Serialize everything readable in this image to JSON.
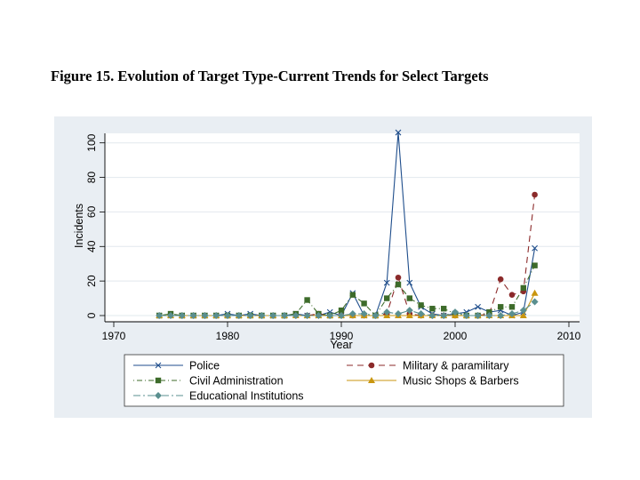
{
  "figure_title": "Figure 15. Evolution of Target Type-Current Trends for Select Targets",
  "chart_data": {
    "type": "line",
    "xlabel": "Year",
    "ylabel": "Incidents",
    "xlim": [
      1970,
      2010
    ],
    "ylim": [
      0,
      105
    ],
    "x_ticks": [
      1970,
      1980,
      1990,
      2000,
      2010
    ],
    "y_ticks": [
      0,
      20,
      40,
      60,
      80,
      100
    ],
    "grid": "horizontal",
    "legend": "bottom",
    "x": [
      1974,
      1975,
      1976,
      1977,
      1978,
      1979,
      1980,
      1981,
      1982,
      1983,
      1984,
      1985,
      1986,
      1987,
      1988,
      1989,
      1990,
      1991,
      1992,
      1993,
      1994,
      1995,
      1996,
      1997,
      1998,
      1999,
      2000,
      2001,
      2002,
      2003,
      2004,
      2005,
      2006,
      2007
    ],
    "series": [
      {
        "name": "Police",
        "color": "#1f4e8c",
        "dash": "",
        "marker": "x",
        "values": [
          0,
          0,
          0,
          0,
          0,
          0,
          1,
          0,
          1,
          0,
          0,
          0,
          1,
          0,
          0,
          2,
          0,
          13,
          0,
          0,
          19,
          106,
          19,
          5,
          1,
          0,
          1,
          2,
          5,
          2,
          3,
          0,
          2,
          39
        ]
      },
      {
        "name": "Military & paramilitary",
        "color": "#8b2a2a",
        "dash": "7,5",
        "marker": "circle",
        "values": [
          0,
          0,
          0,
          0,
          0,
          0,
          0,
          0,
          0,
          0,
          0,
          0,
          0,
          0,
          1,
          0,
          0,
          0,
          0,
          0,
          1,
          22,
          1,
          0,
          0,
          0,
          0,
          0,
          0,
          1,
          21,
          12,
          14,
          70
        ]
      },
      {
        "name": "Civil Administration",
        "color": "#3d6b2a",
        "dash": "1,3,6,3",
        "marker": "square",
        "values": [
          0,
          1,
          0,
          0,
          0,
          0,
          0,
          0,
          0,
          0,
          0,
          0,
          1,
          9,
          1,
          0,
          3,
          12,
          7,
          0,
          10,
          18,
          10,
          6,
          4,
          4,
          1,
          0,
          0,
          2,
          5,
          5,
          16,
          29
        ]
      },
      {
        "name": "Music Shops & Barbers",
        "color": "#c9960f",
        "dash": "",
        "marker": "triangle",
        "values": [
          0,
          0,
          0,
          0,
          0,
          0,
          0,
          0,
          0,
          0,
          0,
          0,
          0,
          0,
          0,
          0,
          0,
          0,
          0,
          0,
          0,
          0,
          0,
          0,
          0,
          0,
          0,
          0,
          0,
          0,
          0,
          0,
          0,
          13
        ]
      },
      {
        "name": "Educational Institutions",
        "color": "#5a8f8f",
        "dash": "8,3,2,3",
        "marker": "diamond",
        "values": [
          0,
          0,
          0,
          0,
          0,
          0,
          0,
          0,
          0,
          0,
          0,
          0,
          0,
          0,
          0,
          0,
          0,
          1,
          1,
          0,
          2,
          1,
          3,
          1,
          0,
          0,
          2,
          0,
          0,
          0,
          0,
          1,
          3,
          8
        ]
      }
    ]
  }
}
